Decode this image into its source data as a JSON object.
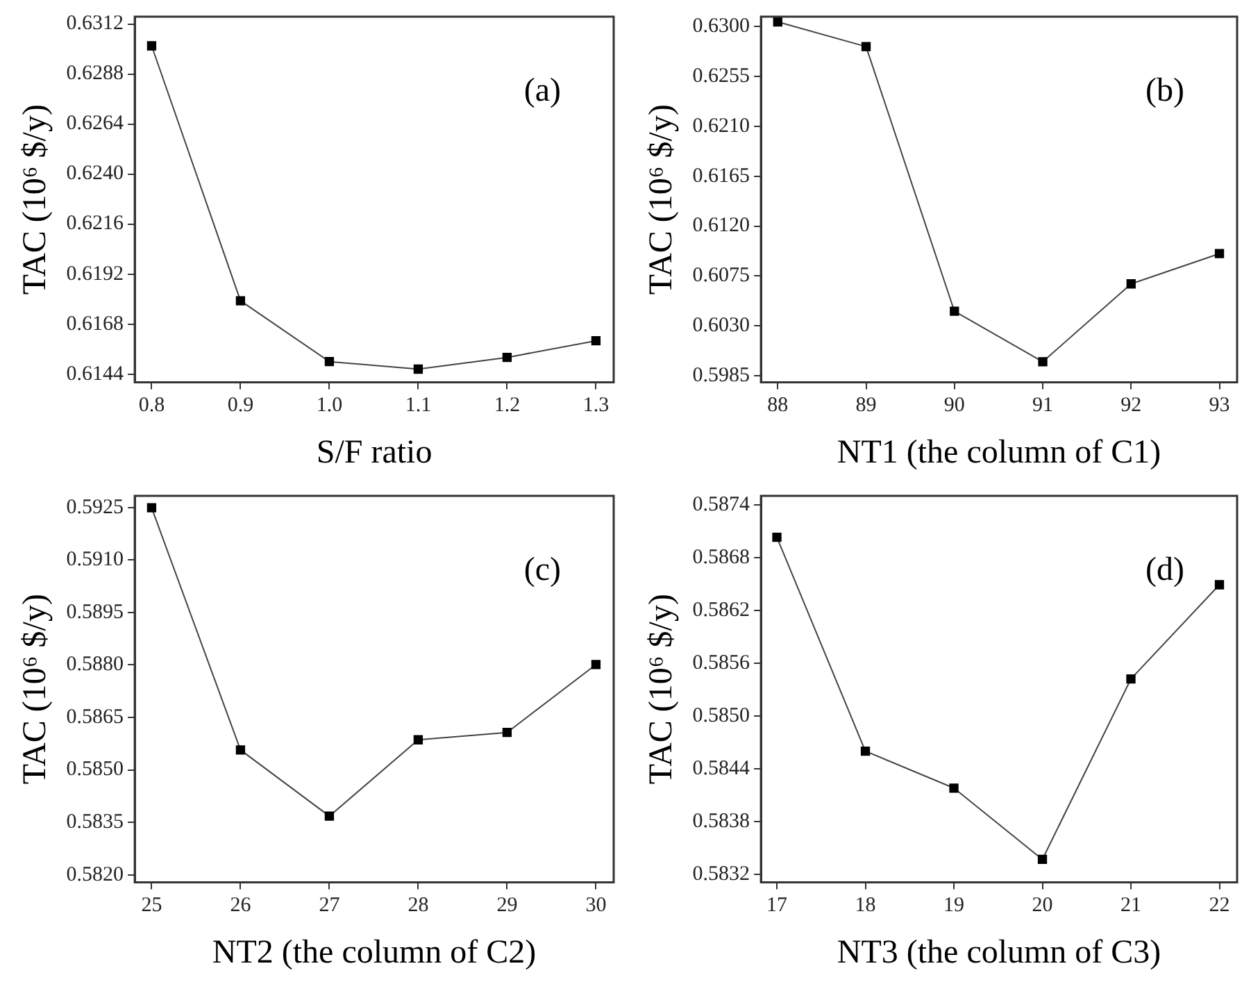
{
  "chart_data": [
    {
      "type": "line",
      "xlabel": "S/F ratio",
      "ylabel": "TAC (10⁶ $/y)",
      "annotations": [
        "(a)"
      ],
      "x": [
        0.8,
        0.9,
        1.0,
        1.1,
        1.2,
        1.3
      ],
      "series": [
        {
          "color": "#000000",
          "values": [
            0.63015,
            0.61792,
            0.615,
            0.61464,
            0.6152,
            0.616
          ]
        }
      ],
      "xlim": [
        0.781,
        1.32
      ],
      "xticks": [
        0.8,
        0.9,
        {
          "value": 1,
          "label": "1.0"
        },
        1.1,
        1.2,
        1.3
      ],
      "ylim": [
        0.61401,
        0.63155
      ],
      "yticks": [
        0.6144,
        0.6168,
        0.6192,
        0.6216,
        {
          "value": 0.624,
          "label": "0.6240"
        },
        0.6264,
        0.6288,
        0.6312
      ],
      "grid": false,
      "legend": false,
      "marker": "square",
      "line_style": "solid"
    },
    {
      "type": "line",
      "xlabel": "NT1 (the column of C1)",
      "ylabel": "TAC (10⁶ $/y)",
      "annotations": [
        "(b)"
      ],
      "x": [
        88,
        89,
        90,
        91,
        92,
        93
      ],
      "series": [
        {
          "color": "#000000",
          "values": [
            0.63042,
            0.62819,
            0.60432,
            0.59977,
            0.60679,
            0.60952
          ]
        }
      ],
      "xlim": [
        87.81,
        93.2
      ],
      "xticks": [
        88,
        89,
        90,
        91,
        92,
        93
      ],
      "ylim": [
        0.59792,
        0.63089
      ],
      "yticks": [
        0.5985,
        {
          "value": 0.603,
          "label": "0.6030"
        },
        0.6075,
        {
          "value": 0.612,
          "label": "0.6120"
        },
        0.6165,
        {
          "value": 0.621,
          "label": "0.6210"
        },
        0.6255,
        {
          "value": 0.63,
          "label": "0.6300"
        }
      ],
      "grid": false,
      "legend": false,
      "marker": "square",
      "line_style": "solid"
    },
    {
      "type": "line",
      "xlabel": "NT2 (the column of C2)",
      "ylabel": "TAC (10⁶ $/y)",
      "annotations": [
        "(c)"
      ],
      "x": [
        25,
        26,
        27,
        28,
        29,
        30
      ],
      "series": [
        {
          "color": "#000000",
          "values": [
            0.59249,
            0.58557,
            0.58368,
            0.58586,
            0.58607,
            0.58801
          ]
        }
      ],
      "xlim": [
        24.81,
        30.2
      ],
      "xticks": [
        25,
        26,
        27,
        28,
        29,
        30
      ],
      "ylim": [
        0.58179,
        0.59283
      ],
      "yticks": [
        {
          "value": 0.582,
          "label": "0.5820"
        },
        0.5835,
        {
          "value": 0.585,
          "label": "0.5850"
        },
        0.5865,
        {
          "value": 0.588,
          "label": "0.5880"
        },
        0.5895,
        {
          "value": 0.591,
          "label": "0.5910"
        },
        0.5925
      ],
      "grid": false,
      "legend": false,
      "marker": "square",
      "line_style": "solid"
    },
    {
      "type": "line",
      "xlabel": "NT3 (the column of C3)",
      "ylabel": "TAC (10⁶ $/y)",
      "annotations": [
        "(d)"
      ],
      "x": [
        17,
        18,
        19,
        20,
        21,
        22
      ],
      "series": [
        {
          "color": "#000000",
          "values": [
            0.58703,
            0.5846,
            0.58418,
            0.58337,
            0.58542,
            0.58649
          ]
        }
      ],
      "xlim": [
        16.82,
        22.2
      ],
      "xticks": [
        17,
        18,
        19,
        20,
        21,
        22
      ],
      "ylim": [
        0.58311,
        0.5875
      ],
      "yticks": [
        0.5832,
        0.5838,
        0.5844,
        {
          "value": 0.585,
          "label": "0.5850"
        },
        0.5856,
        0.5862,
        0.5868,
        0.5874
      ],
      "grid": false,
      "legend": false,
      "marker": "square",
      "line_style": "solid"
    }
  ]
}
